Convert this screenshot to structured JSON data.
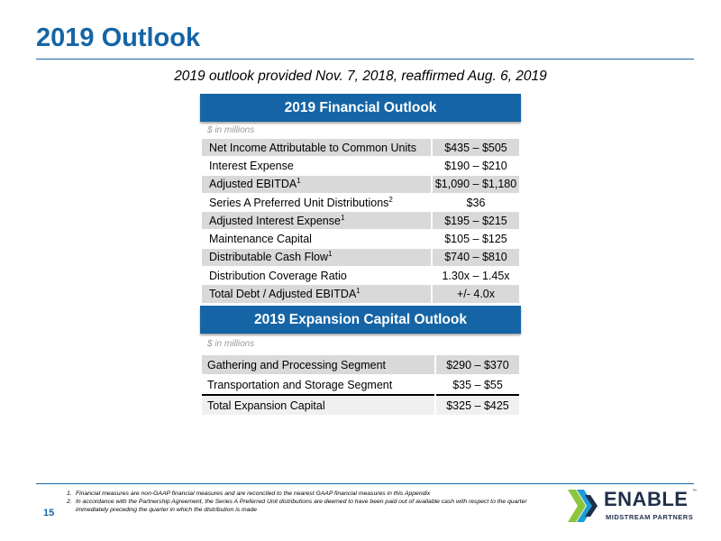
{
  "title": "2019 Outlook",
  "subtitle": "2019 outlook provided Nov. 7, 2018, reaffirmed Aug. 6, 2019",
  "financial": {
    "header": "2019 Financial Outlook",
    "units": "$ in millions",
    "rows": [
      {
        "label": "Net Income Attributable to Common Units",
        "sup": "",
        "value": "$435 – $505"
      },
      {
        "label": "Interest Expense",
        "sup": "",
        "value": "$190 – $210"
      },
      {
        "label": "Adjusted EBITDA",
        "sup": "1",
        "value": "$1,090 – $1,180"
      },
      {
        "label": "Series A Preferred Unit Distributions",
        "sup": "2",
        "value": "$36"
      },
      {
        "label": "Adjusted Interest Expense",
        "sup": "1",
        "value": "$195 – $215"
      },
      {
        "label": "Maintenance Capital",
        "sup": "",
        "value": "$105 – $125"
      },
      {
        "label": "Distributable Cash Flow",
        "sup": "1",
        "value": "$740 – $810"
      },
      {
        "label": "Distribution Coverage Ratio",
        "sup": "",
        "value": "1.30x – 1.45x"
      },
      {
        "label": "Total Debt / Adjusted EBITDA",
        "sup": "1",
        "value": "+/- 4.0x"
      }
    ]
  },
  "expansion": {
    "header": "2019 Expansion Capital Outlook",
    "units": "$ in millions",
    "rows": [
      {
        "label": "Gathering and Processing Segment",
        "value": "$290 – $370"
      },
      {
        "label": "Transportation and Storage Segment",
        "value": "$35 – $55"
      }
    ],
    "total": {
      "label": "Total Expansion Capital",
      "value": "$325 – $425"
    }
  },
  "footnotes": [
    {
      "num": "1.",
      "text": "Financial measures are non-GAAP financial measures and are reconciled to the nearest GAAP financial measures in this Appendix"
    },
    {
      "num": "2.",
      "text": "In accordance with the Partnership Agreement, the Series A Preferred Unit distributions are deemed to have been paid out of available cash with respect to the quarter immediately preceding the quarter in which the distribution is made"
    }
  ],
  "page_number": "15",
  "logo": {
    "word": "ENABLE",
    "tagline": "MIDSTREAM PARTNERS",
    "tm": "™",
    "colors": [
      "#8cc63f",
      "#1f9bd7",
      "#1f2f4a"
    ]
  }
}
